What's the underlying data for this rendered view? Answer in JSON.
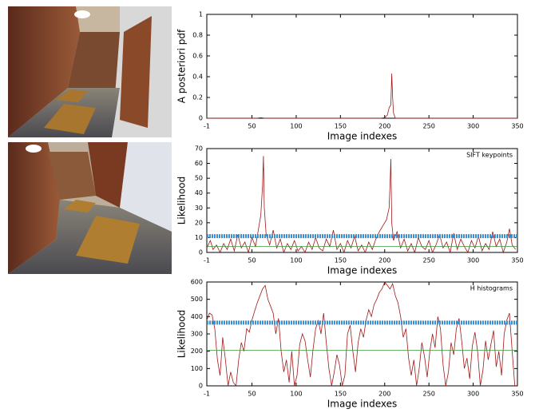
{
  "chart_data": [
    {
      "type": "line",
      "ylabel": "A posteriori pdf",
      "xlabel": "Image indexes",
      "xlim": [
        -1,
        350
      ],
      "xticks": [
        -1,
        50,
        100,
        150,
        200,
        250,
        300,
        350
      ],
      "ylim": [
        0,
        1
      ],
      "yticks": [
        0,
        0.2,
        0.4,
        0.6,
        0.8,
        1
      ],
      "series": [
        {
          "color": "#a01818",
          "x": [
            -1,
            55,
            60,
            65,
            195,
            200,
            203,
            205,
            207,
            208,
            209,
            210,
            212,
            350
          ],
          "values": [
            0,
            0,
            0.005,
            0,
            0,
            0.005,
            0.03,
            0.1,
            0.13,
            0.43,
            0.2,
            0.05,
            0,
            0
          ]
        }
      ]
    },
    {
      "type": "line",
      "ylabel": "Likelihood",
      "xlabel": "Image indexes",
      "annotation": "SIFT keypoints",
      "xlim": [
        -1,
        350
      ],
      "xticks": [
        -1,
        50,
        100,
        150,
        200,
        250,
        300,
        350
      ],
      "ylim": [
        0,
        70
      ],
      "yticks": [
        0,
        10,
        20,
        30,
        40,
        50,
        60,
        70
      ],
      "series": [
        {
          "color": "#a01818",
          "x": [
            -1,
            3,
            6,
            10,
            14,
            18,
            22,
            26,
            30,
            34,
            38,
            42,
            46,
            50,
            54,
            58,
            60,
            62,
            63,
            64,
            66,
            70,
            74,
            78,
            82,
            86,
            90,
            94,
            98,
            102,
            106,
            110,
            114,
            118,
            122,
            126,
            130,
            134,
            138,
            142,
            146,
            150,
            154,
            158,
            162,
            166,
            170,
            174,
            178,
            182,
            186,
            190,
            194,
            198,
            202,
            205,
            206,
            207,
            208,
            210,
            214,
            218,
            222,
            226,
            230,
            234,
            238,
            242,
            246,
            250,
            254,
            258,
            262,
            266,
            270,
            274,
            278,
            282,
            286,
            290,
            294,
            298,
            302,
            306,
            310,
            314,
            318,
            322,
            326,
            330,
            334,
            338,
            341,
            344,
            348
          ],
          "values": [
            3,
            8,
            2,
            5,
            0,
            6,
            2,
            9,
            1,
            12,
            3,
            7,
            0,
            10,
            4,
            18,
            25,
            45,
            65,
            30,
            12,
            5,
            15,
            3,
            9,
            0,
            6,
            2,
            8,
            1,
            4,
            0,
            7,
            2,
            10,
            3,
            1,
            9,
            4,
            15,
            2,
            6,
            0,
            8,
            3,
            11,
            1,
            5,
            0,
            7,
            2,
            9,
            14,
            18,
            22,
            30,
            45,
            63,
            20,
            8,
            14,
            3,
            9,
            1,
            6,
            0,
            10,
            4,
            2,
            8,
            0,
            5,
            12,
            3,
            7,
            0,
            13,
            2,
            9,
            4,
            0,
            8,
            3,
            11,
            1,
            6,
            2,
            14,
            4,
            9,
            0,
            7,
            16,
            5,
            2
          ]
        },
        {
          "color": "#3a8fd0",
          "x": [
            -1,
            350
          ],
          "values": [
            11,
            11
          ]
        },
        {
          "color": "#3a9a3a",
          "x": [
            -1,
            350
          ],
          "values": [
            4,
            4
          ]
        }
      ]
    },
    {
      "type": "line",
      "ylabel": "Likelihood",
      "xlabel": "Image indexes",
      "annotation": "H histograms",
      "xlim": [
        -1,
        350
      ],
      "xticks": [
        -1,
        50,
        100,
        150,
        200,
        250,
        300,
        350
      ],
      "ylim": [
        0,
        600
      ],
      "yticks": [
        0,
        100,
        200,
        300,
        400,
        500,
        600
      ],
      "series": [
        {
          "color": "#a01818",
          "x": [
            -1,
            2,
            5,
            8,
            11,
            14,
            17,
            20,
            23,
            26,
            29,
            32,
            35,
            38,
            41,
            44,
            47,
            50,
            53,
            56,
            59,
            62,
            65,
            68,
            71,
            74,
            77,
            80,
            83,
            86,
            89,
            92,
            95,
            98,
            101,
            104,
            107,
            110,
            113,
            116,
            119,
            122,
            125,
            128,
            131,
            134,
            137,
            140,
            143,
            146,
            149,
            152,
            155,
            158,
            161,
            164,
            167,
            170,
            173,
            176,
            179,
            182,
            185,
            188,
            191,
            194,
            197,
            200,
            203,
            206,
            209,
            212,
            215,
            218,
            221,
            224,
            227,
            230,
            233,
            236,
            239,
            242,
            245,
            248,
            251,
            254,
            257,
            260,
            263,
            266,
            269,
            272,
            275,
            278,
            281,
            284,
            287,
            290,
            293,
            296,
            299,
            302,
            305,
            308,
            311,
            314,
            317,
            320,
            323,
            326,
            329,
            332,
            335,
            338,
            341,
            344,
            347
          ],
          "values": [
            380,
            420,
            410,
            330,
            150,
            60,
            280,
            150,
            0,
            80,
            20,
            0,
            150,
            250,
            200,
            330,
            310,
            380,
            430,
            480,
            520,
            560,
            580,
            500,
            460,
            420,
            300,
            390,
            200,
            80,
            150,
            20,
            200,
            0,
            60,
            240,
            300,
            260,
            150,
            50,
            210,
            330,
            380,
            300,
            420,
            250,
            100,
            0,
            80,
            180,
            120,
            0,
            60,
            300,
            350,
            200,
            80,
            250,
            330,
            280,
            380,
            440,
            400,
            470,
            500,
            540,
            560,
            600,
            580,
            560,
            590,
            520,
            480,
            400,
            280,
            330,
            160,
            60,
            150,
            0,
            100,
            250,
            170,
            50,
            200,
            300,
            220,
            400,
            330,
            120,
            0,
            80,
            250,
            180,
            330,
            390,
            260,
            100,
            160,
            40,
            230,
            310,
            200,
            0,
            90,
            260,
            150,
            240,
            320,
            110,
            200,
            60,
            300,
            380,
            420,
            200,
            0
          ]
        },
        {
          "color": "#3a8fd0",
          "x": [
            -1,
            350
          ],
          "values": [
            365,
            365
          ]
        },
        {
          "color": "#3a9a3a",
          "x": [
            -1,
            350
          ],
          "values": [
            205,
            205
          ]
        }
      ]
    }
  ]
}
